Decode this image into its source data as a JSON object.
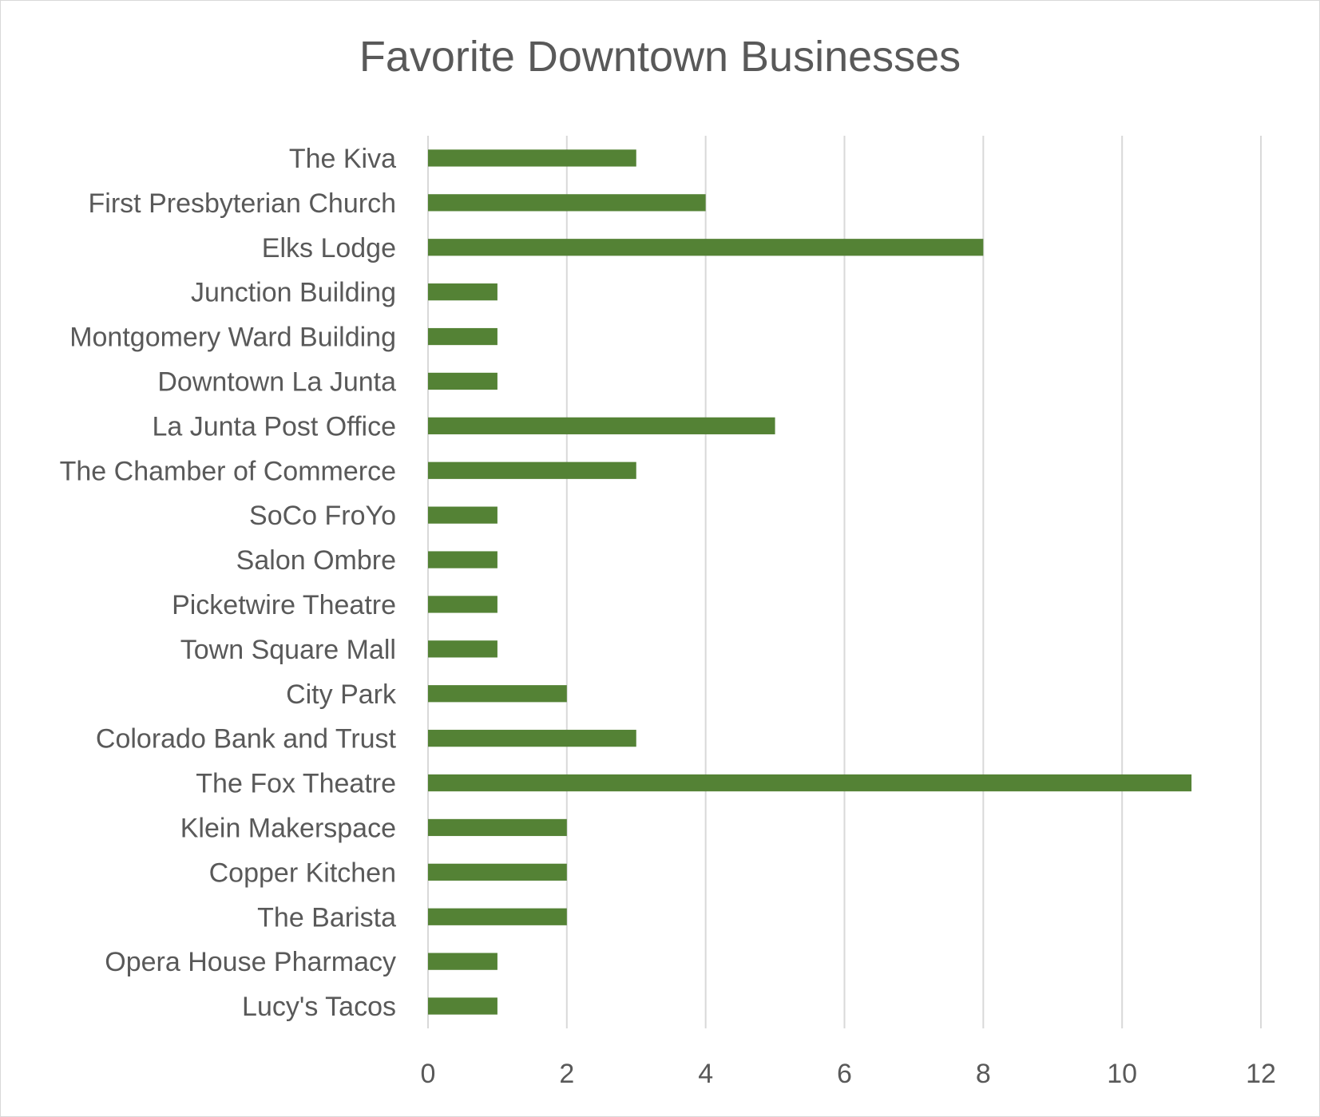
{
  "chart_data": {
    "type": "bar",
    "orientation": "horizontal",
    "title": "Favorite Downtown Businesses",
    "xlabel": "",
    "ylabel": "",
    "categories": [
      "The Kiva",
      "First Presbyterian Church",
      "Elks Lodge",
      "Junction Building",
      "Montgomery Ward Building",
      "Downtown La Junta",
      "La Junta Post Office",
      "The Chamber of Commerce",
      "SoCo FroYo",
      "Salon Ombre",
      "Picketwire Theatre",
      "Town Square Mall",
      "City Park",
      "Colorado Bank and Trust",
      "The Fox Theatre",
      "Klein Makerspace",
      "Copper Kitchen",
      "The Barista",
      "Opera House Pharmacy",
      "Lucy's Tacos"
    ],
    "values": [
      3,
      4,
      8,
      1,
      1,
      1,
      5,
      3,
      1,
      1,
      1,
      1,
      2,
      3,
      11,
      2,
      2,
      2,
      1,
      1
    ],
    "xlim": [
      0,
      12
    ],
    "xticks": [
      "0",
      "2",
      "4",
      "6",
      "8",
      "10",
      "12"
    ],
    "grid": "vertical",
    "legend": "none",
    "bar_color": "#548235",
    "grid_color": "#d9d9d9",
    "text_color": "#595959"
  }
}
